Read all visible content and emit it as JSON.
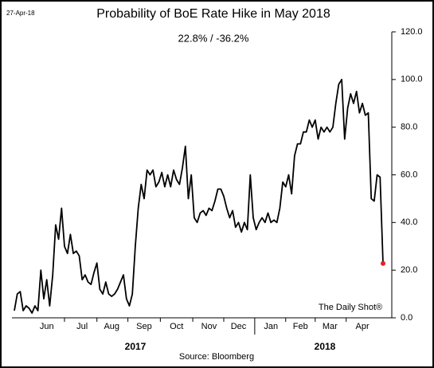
{
  "chart_data": {
    "type": "line",
    "title": "Probability of BoE Rate Hike in May 2018",
    "subtitle": "22.8%  /  -36.2%",
    "date_label": "27-Apr-18",
    "watermark": "The Daily Shot®",
    "source": "Source: Bloomberg",
    "year_labels": [
      "2017",
      "2018"
    ],
    "categories": [
      null,
      null,
      null,
      null,
      null,
      null,
      null,
      null,
      null,
      null,
      null,
      "Jun",
      null,
      null,
      null,
      null,
      null,
      null,
      null,
      null,
      null,
      null,
      null,
      "Jul",
      null,
      null,
      null,
      null,
      null,
      null,
      null,
      null,
      null,
      "Aug",
      null,
      null,
      null,
      null,
      null,
      null,
      null,
      null,
      null,
      null,
      "Sep",
      null,
      null,
      null,
      null,
      null,
      null,
      null,
      null,
      null,
      null,
      "Oct",
      null,
      null,
      null,
      null,
      null,
      null,
      null,
      null,
      null,
      null,
      "Nov",
      null,
      null,
      null,
      null,
      null,
      null,
      null,
      null,
      null,
      "Dec",
      null,
      null,
      null,
      null,
      null,
      null,
      null,
      null,
      null,
      null,
      "Jan",
      null,
      null,
      null,
      null,
      null,
      null,
      null,
      null,
      null,
      "Feb",
      null,
      null,
      null,
      null,
      null,
      null,
      null,
      null,
      null,
      "Mar",
      null,
      null,
      null,
      null,
      null,
      null,
      null,
      null,
      null,
      null,
      "Apr",
      null,
      null,
      null,
      null,
      null,
      null,
      null
    ],
    "series": [
      {
        "name": "Probability",
        "color": "#000000",
        "last_point_color": "#e8202a",
        "values": [
          3,
          10,
          11,
          3,
          5,
          4,
          2,
          5,
          3,
          20,
          8,
          16,
          5,
          18,
          39,
          33,
          46,
          30,
          27,
          35,
          27,
          28,
          26,
          16,
          18,
          15,
          14,
          19,
          23,
          12,
          10,
          15,
          10,
          9,
          10,
          12,
          15,
          18,
          8,
          5,
          10,
          30,
          46,
          56,
          50,
          62,
          60,
          62,
          55,
          57,
          61,
          55,
          60,
          55,
          62,
          58,
          56,
          63,
          72,
          50,
          60,
          42,
          40,
          44,
          45,
          43,
          46,
          45,
          49,
          54,
          54,
          51,
          46,
          42,
          45,
          38,
          40,
          36,
          40,
          37,
          60,
          42,
          37,
          40,
          42,
          40,
          44,
          40,
          41,
          40,
          46,
          57,
          55,
          60,
          52,
          68,
          73,
          73,
          78,
          78,
          83,
          80,
          83,
          75,
          80,
          78,
          80,
          78,
          80,
          90,
          98,
          100,
          75,
          88,
          94,
          90,
          95,
          86,
          90,
          85,
          86,
          50,
          49,
          60,
          59,
          22.8
        ]
      }
    ],
    "ylim": [
      0,
      120
    ],
    "yticks": [
      {
        "value": 0,
        "label": "0.0"
      },
      {
        "value": 20,
        "label": "20.0"
      },
      {
        "value": 40,
        "label": "40.0"
      },
      {
        "value": 60,
        "label": "60.0"
      },
      {
        "value": 80,
        "label": "80.0"
      },
      {
        "value": 100,
        "label": "100.0"
      },
      {
        "value": 120,
        "label": "120.0"
      }
    ],
    "grid": false
  }
}
